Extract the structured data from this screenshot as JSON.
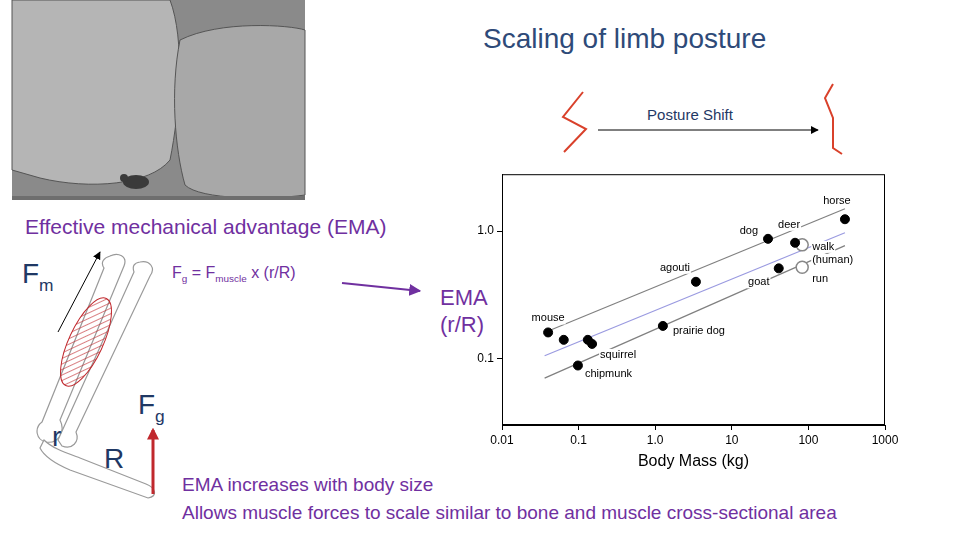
{
  "slide_title": "Scaling of limb posture",
  "posture_shift": "Posture Shift",
  "ema_heading": "Effective mechanical advantage (EMA)",
  "diagram": {
    "muscle_force": [
      {
        "text": "F"
      },
      {
        "sub": "m"
      }
    ],
    "ground_force": [
      {
        "text": "F"
      },
      {
        "sub": "g"
      }
    ],
    "r": "r",
    "R": "R"
  },
  "formula": [
    {
      "text": "F"
    },
    {
      "sub": "g"
    },
    {
      "text": " = F"
    },
    {
      "sub": "muscle"
    },
    {
      "text": " x (r/R)"
    }
  ],
  "ema_label": [
    "EMA",
    "(r/R)"
  ],
  "notes": [
    "EMA increases with body size",
    "Allows muscle forces to scale similar to bone and muscle cross-sectional area"
  ],
  "chart_data": {
    "type": "scatter",
    "log": true,
    "grid": false,
    "x_label": "Body Mass (kg)",
    "xlim": [
      0.01,
      1000
    ],
    "xticks": [
      0.01,
      0.1,
      {
        "value": 1,
        "label": "1.0"
      },
      10,
      100,
      1000
    ],
    "ylim": [
      0.03,
      2.8
    ],
    "yticks": [
      0.1,
      {
        "value": 1,
        "label": "1.0"
      }
    ],
    "series": [
      {
        "type": "scatter",
        "marker": "circle",
        "color": "#000000",
        "x": [
          0.04,
          0.064,
          0.132,
          0.15,
          0.098,
          1.26,
          3.4,
          29.7,
          67,
          41,
          300
        ],
        "values": [
          0.16,
          0.14,
          0.14,
          0.13,
          0.088,
          0.18,
          0.4,
          0.87,
          0.81,
          0.51,
          1.24
        ],
        "point_labels": [
          "mouse",
          null,
          null,
          "squirrel",
          "chipmunk",
          "prairie dog",
          "agouti",
          "dog",
          "deer",
          "goat",
          "horse"
        ]
      },
      {
        "type": "scatter",
        "marker": "open_circle",
        "color": "#888888",
        "x": [
          83,
          83
        ],
        "values": [
          0.78,
          0.52
        ],
        "point_labels": [
          "walk (human)",
          "run"
        ]
      },
      {
        "type": "line",
        "color": "#9a9ae0",
        "x": [
          0.036,
          300
        ],
        "values": [
          0.105,
          0.97
        ]
      },
      {
        "type": "line",
        "color": "#808080",
        "x": [
          0.036,
          300
        ],
        "values": [
          0.16,
          1.5
        ]
      },
      {
        "type": "line",
        "color": "#808080",
        "x": [
          0.036,
          300
        ],
        "values": [
          0.07,
          0.77
        ]
      }
    ]
  }
}
